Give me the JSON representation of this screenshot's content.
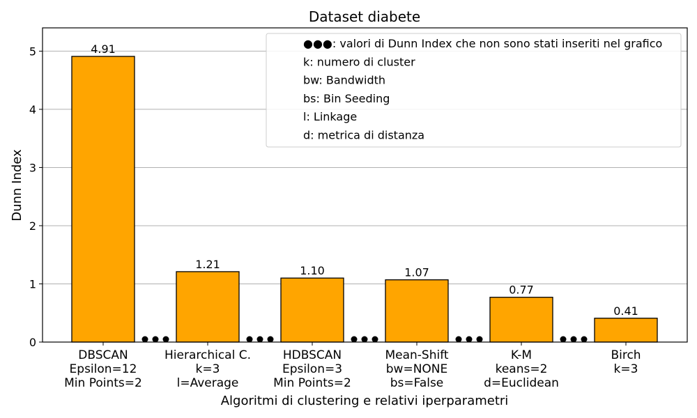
{
  "chart_data": {
    "type": "bar",
    "title": "Dataset diabete",
    "xlabel": "Algoritmi di clustering e relativi iperparametri",
    "ylabel": "Dunn Index",
    "ylim": [
      0,
      5.4
    ],
    "yticks": [
      "0",
      "1",
      "2",
      "3",
      "4",
      "5"
    ],
    "grid": "y",
    "bar_color": "#ffa500",
    "categories": [
      [
        "DBSCAN",
        "Epsilon=12",
        "Min Points=2"
      ],
      [
        "Hierarchical C.",
        "k=3",
        "l=Average"
      ],
      [
        "HDBSCAN",
        "Epsilon=3",
        "Min Points=2"
      ],
      [
        "Mean-Shift",
        "bw=NONE",
        "bs=False"
      ],
      [
        "K-M",
        "keans=2",
        "d=Euclidean"
      ],
      [
        "Birch",
        "k=3"
      ]
    ],
    "values": [
      4.91,
      1.21,
      1.1,
      1.07,
      0.77,
      0.41
    ],
    "value_labels": [
      "4.91",
      "1.21",
      "1.10",
      "1.07",
      "0.77",
      "0.41"
    ],
    "legend_position": "top-right",
    "legend": [
      "●●●: valori di Dunn Index che non sono stati inseriti nel grafico",
      "k: numero di cluster",
      "bw: Bandwidth",
      "bs: Bin Seeding",
      "l: Linkage",
      "d: metrica di distanza"
    ]
  }
}
